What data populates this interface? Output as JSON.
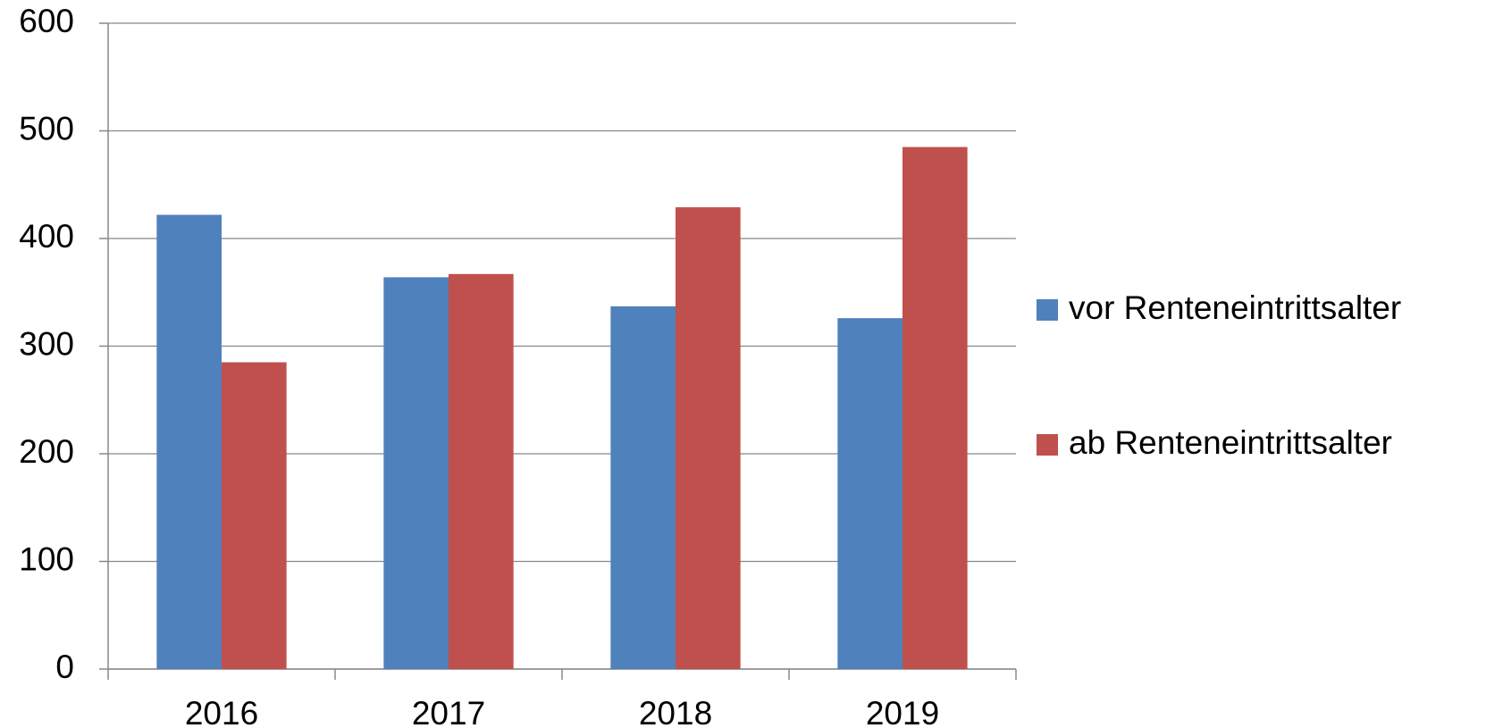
{
  "chart_data": {
    "type": "bar",
    "categories": [
      "2016",
      "2017",
      "2018",
      "2019"
    ],
    "series": [
      {
        "name": "vor Renteneintrittsalter",
        "color": "#4f81bd",
        "values": [
          422,
          364,
          337,
          326
        ]
      },
      {
        "name": "ab Renteneintrittsalter",
        "color": "#c0504d",
        "values": [
          285,
          367,
          429,
          485
        ]
      }
    ],
    "ylim": [
      0,
      600
    ],
    "yticks": [
      0,
      100,
      200,
      300,
      400,
      500,
      600
    ],
    "grid": true,
    "legend": "right"
  }
}
